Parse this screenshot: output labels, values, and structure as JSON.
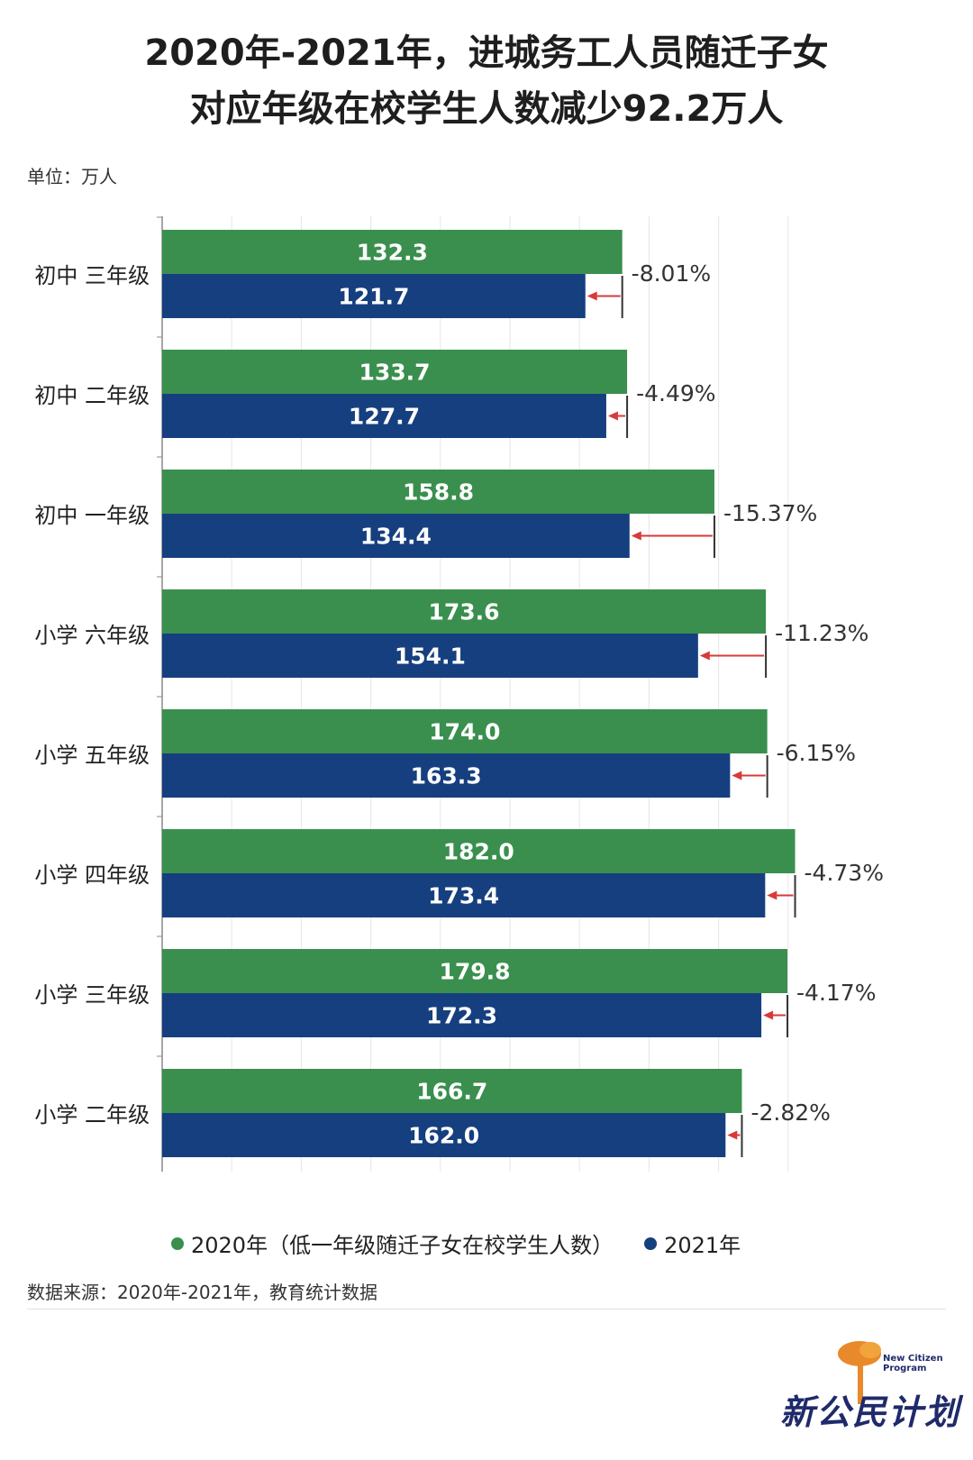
{
  "title_line1": "2020年-2021年，进城务工人员随迁子女",
  "title_line2": "对应年级在校学生人数减少92.2万人",
  "unit": "单位：万人",
  "source": "数据来源：2020年-2021年，教育统计数据",
  "logo": {
    "text": "新公民计划",
    "small_text_1": "New Citizen",
    "small_text_2": "Program",
    "icon": "tree-logo-icon"
  },
  "colors": {
    "series_2020": "#3a8f4e",
    "series_2021": "#163f7f",
    "arrow": "#d83a3a",
    "grid": "#e6e6e6",
    "axis": "#888888"
  },
  "chart_data": {
    "type": "bar",
    "orientation": "horizontal",
    "categories": [
      "初中 三年级",
      "初中 二年级",
      "初中 一年级",
      "小学 六年级",
      "小学 五年级",
      "小学 四年级",
      "小学 三年级",
      "小学 二年级"
    ],
    "series": [
      {
        "name": "2020年（低一年级随迁子女在校学生人数）",
        "values": [
          132.3,
          133.7,
          158.8,
          173.6,
          174.0,
          182.0,
          179.8,
          166.7
        ]
      },
      {
        "name": "2021年",
        "values": [
          121.7,
          127.7,
          134.4,
          154.1,
          163.3,
          173.4,
          172.3,
          162.0
        ]
      }
    ],
    "value_labels_2020": [
      "132.3",
      "133.7",
      "158.8",
      "173.6",
      "174.0",
      "182.0",
      "179.8",
      "166.7"
    ],
    "value_labels_2021": [
      "121.7",
      "127.7",
      "134.4",
      "154.1",
      "163.3",
      "173.4",
      "172.3",
      "162.0"
    ],
    "change_labels": [
      "-8.01%",
      "-4.49%",
      "-15.37%",
      "-11.23%",
      "-6.15%",
      "-4.73%",
      "-4.17%",
      "-2.82%"
    ],
    "xlim": [
      0,
      180
    ],
    "grid": true,
    "legend_position": "bottom"
  }
}
